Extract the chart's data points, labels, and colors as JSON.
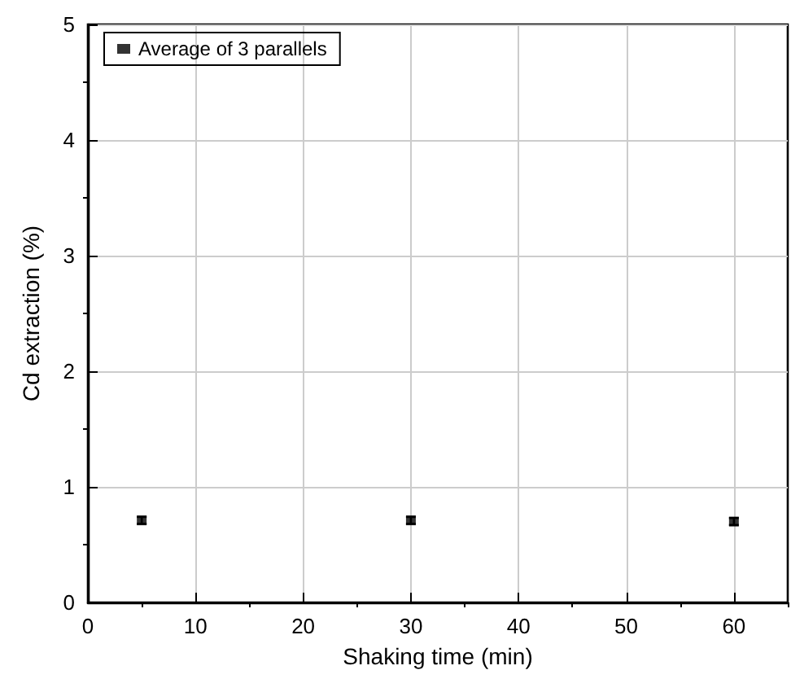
{
  "chart_data": {
    "type": "scatter",
    "xlabel": "Shaking time (min)",
    "ylabel": "Cd extraction (%)",
    "x": [
      5,
      30,
      60
    ],
    "series": [
      {
        "name": "Average of 3 parallels",
        "color": "#000000",
        "values": [
          0.71,
          0.71,
          0.7
        ],
        "errors": [
          0.03,
          0.03,
          0.03
        ]
      }
    ],
    "xlim": [
      0,
      65
    ],
    "xticks": [
      0,
      10,
      20,
      30,
      40,
      50,
      60
    ],
    "ylim": [
      0,
      5
    ],
    "yticks": [
      0,
      1,
      2,
      3,
      4,
      5
    ],
    "grid": true,
    "legend": "top left",
    "marker": "square"
  }
}
